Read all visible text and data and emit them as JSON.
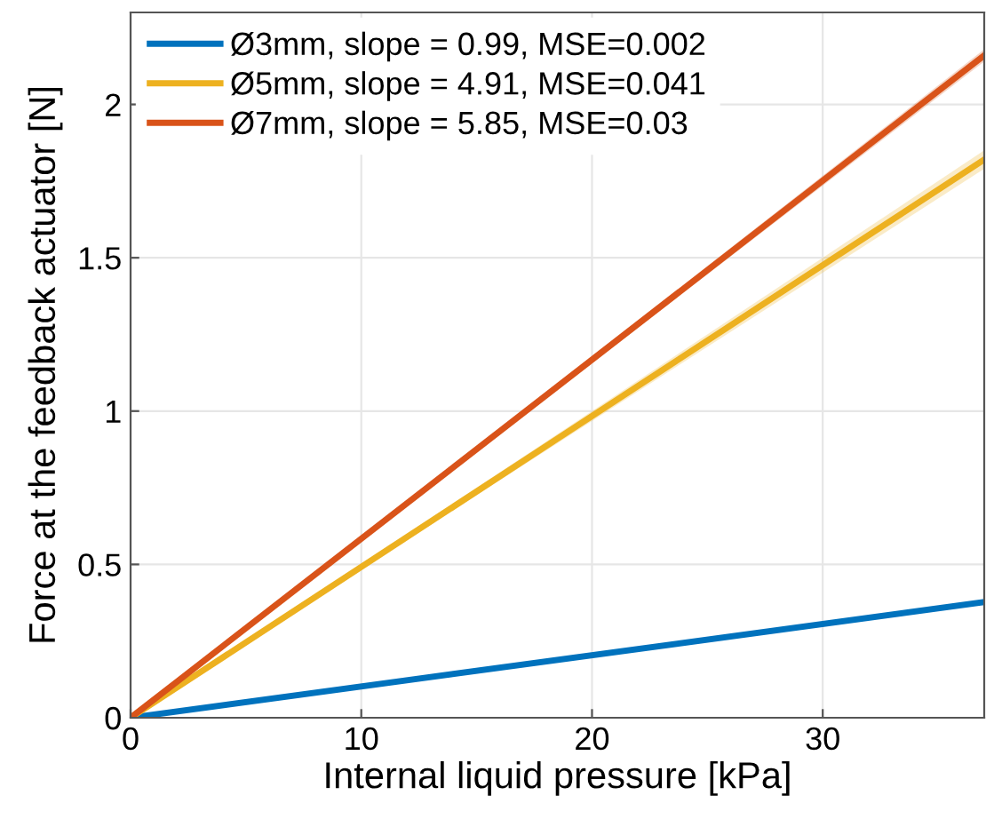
{
  "chart_data": {
    "type": "line",
    "xlabel": "Internal liquid pressure [kPa]",
    "ylabel": "Force at the feedback actuator [N]",
    "x": [
      0,
      37
    ],
    "series": [
      {
        "name": "Ø3mm, slope = 0.99, MSE=0.002",
        "color": "#0072bd",
        "values": [
          0,
          0.377
        ]
      },
      {
        "name": "Ø5mm, slope = 4.91, MSE=0.041",
        "color": "#edb120",
        "values": [
          0,
          1.82
        ],
        "lower": [
          0,
          1.79
        ],
        "upper": [
          0,
          1.85
        ]
      },
      {
        "name": "Ø7mm, slope = 5.85, MSE=0.03",
        "color": "#d95319",
        "values": [
          0,
          2.16
        ],
        "lower": [
          0,
          2.14
        ],
        "upper": [
          0,
          2.18
        ]
      }
    ],
    "xlim": [
      0,
      37
    ],
    "ylim": [
      0,
      2.3
    ],
    "xticks": [
      0,
      10,
      20,
      30
    ],
    "yticks": [
      0,
      0.5,
      1,
      1.5,
      2
    ],
    "grid": true,
    "legend": "top left",
    "marker": "none",
    "line_style": "solid"
  }
}
